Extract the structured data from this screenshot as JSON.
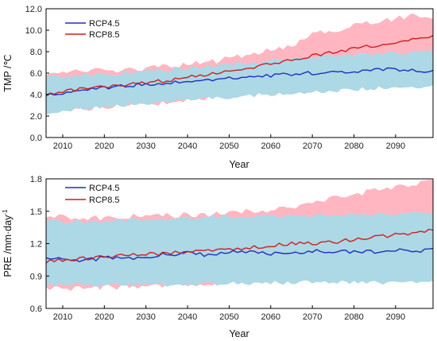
{
  "chart_data": [
    {
      "type": "line",
      "ylabel": "TMP /℃",
      "xlabel": "Year",
      "xlim": [
        2006,
        2099
      ],
      "ylim": [
        0,
        12
      ],
      "xticks": [
        2010,
        2020,
        2030,
        2040,
        2050,
        2060,
        2070,
        2080,
        2090
      ],
      "yticks": [
        "0.0",
        "2.0",
        "4.0",
        "6.0",
        "8.0",
        "10.0",
        "12.0"
      ],
      "legend_position": "top-left",
      "bands": [
        {
          "series": "RCP8.5",
          "color": "#ffb6c1",
          "x": [
            2006,
            2015,
            2025,
            2035,
            2045,
            2055,
            2065,
            2070,
            2075,
            2080,
            2085,
            2090,
            2095,
            2099
          ],
          "upper": [
            6.0,
            6.2,
            6.3,
            6.6,
            7.0,
            7.8,
            8.6,
            9.6,
            10.0,
            10.4,
            10.8,
            11.1,
            11.4,
            11.0
          ],
          "lower": [
            2.5,
            2.7,
            2.9,
            3.3,
            3.7,
            4.2,
            4.9,
            5.3,
            5.8,
            6.2,
            6.6,
            7.0,
            7.5,
            7.6
          ]
        },
        {
          "series": "RCP4.5",
          "color": "#add8e6",
          "x": [
            2006,
            2015,
            2025,
            2035,
            2045,
            2055,
            2065,
            2075,
            2085,
            2099
          ],
          "upper": [
            5.6,
            5.8,
            6.0,
            6.3,
            6.6,
            7.0,
            7.3,
            7.6,
            7.8,
            8.0
          ],
          "lower": [
            2.3,
            2.7,
            3.0,
            3.3,
            3.6,
            3.9,
            4.1,
            4.3,
            4.6,
            4.8
          ]
        }
      ],
      "series": [
        {
          "name": "RCP4.5",
          "color": "#1f2fbf",
          "x": [
            2006,
            2010,
            2015,
            2020,
            2025,
            2030,
            2035,
            2040,
            2045,
            2050,
            2055,
            2060,
            2065,
            2070,
            2075,
            2080,
            2085,
            2090,
            2095,
            2099
          ],
          "values": [
            4.0,
            4.2,
            4.4,
            4.6,
            4.8,
            5.0,
            5.1,
            5.2,
            5.4,
            5.6,
            5.7,
            5.8,
            5.9,
            6.0,
            6.1,
            6.2,
            6.3,
            6.3,
            6.2,
            6.3
          ]
        },
        {
          "name": "RCP8.5",
          "color": "#cc1f1f",
          "x": [
            2006,
            2010,
            2015,
            2020,
            2025,
            2030,
            2035,
            2040,
            2045,
            2050,
            2055,
            2060,
            2065,
            2070,
            2075,
            2080,
            2085,
            2090,
            2095,
            2099
          ],
          "values": [
            4.0,
            4.3,
            4.5,
            4.7,
            4.9,
            5.1,
            5.3,
            5.6,
            5.9,
            6.2,
            6.5,
            6.9,
            7.3,
            7.6,
            8.0,
            8.3,
            8.6,
            8.9,
            9.2,
            9.4
          ]
        }
      ]
    },
    {
      "type": "line",
      "ylabel": "PRE /mm·day",
      "ylabel_sup": "-1",
      "xlabel": "Year",
      "xlim": [
        2006,
        2099
      ],
      "ylim": [
        0.6,
        1.8
      ],
      "xticks": [
        2010,
        2020,
        2030,
        2040,
        2050,
        2060,
        2070,
        2080,
        2090
      ],
      "yticks": [
        "0.6",
        "0.9",
        "1.2",
        "1.5",
        "1.8"
      ],
      "legend_position": "top-left",
      "bands": [
        {
          "series": "RCP8.5",
          "color": "#ffb6c1",
          "x": [
            2006,
            2015,
            2025,
            2035,
            2045,
            2055,
            2065,
            2070,
            2075,
            2080,
            2085,
            2090,
            2095,
            2099
          ],
          "upper": [
            1.46,
            1.43,
            1.45,
            1.46,
            1.47,
            1.5,
            1.53,
            1.58,
            1.62,
            1.65,
            1.7,
            1.72,
            1.76,
            1.78
          ],
          "lower": [
            0.78,
            0.79,
            0.8,
            0.82,
            0.83,
            0.84,
            0.86,
            0.87,
            0.88,
            0.89,
            0.9,
            0.92,
            0.93,
            0.95
          ]
        },
        {
          "series": "RCP4.5",
          "color": "#add8e6",
          "x": [
            2006,
            2015,
            2025,
            2035,
            2045,
            2055,
            2065,
            2075,
            2085,
            2099
          ],
          "upper": [
            1.42,
            1.4,
            1.42,
            1.43,
            1.45,
            1.45,
            1.46,
            1.47,
            1.47,
            1.48
          ],
          "lower": [
            0.82,
            0.82,
            0.82,
            0.82,
            0.83,
            0.83,
            0.84,
            0.84,
            0.84,
            0.85
          ]
        }
      ],
      "series": [
        {
          "name": "RCP4.5",
          "color": "#1f2fbf",
          "x": [
            2006,
            2010,
            2015,
            2020,
            2025,
            2030,
            2035,
            2040,
            2045,
            2050,
            2055,
            2060,
            2065,
            2070,
            2075,
            2080,
            2085,
            2090,
            2095,
            2099
          ],
          "values": [
            1.08,
            1.05,
            1.04,
            1.07,
            1.06,
            1.08,
            1.1,
            1.11,
            1.09,
            1.12,
            1.13,
            1.11,
            1.12,
            1.13,
            1.12,
            1.13,
            1.12,
            1.14,
            1.13,
            1.15
          ]
        },
        {
          "name": "RCP8.5",
          "color": "#cc1f1f",
          "x": [
            2006,
            2010,
            2015,
            2020,
            2025,
            2030,
            2035,
            2040,
            2045,
            2050,
            2055,
            2060,
            2065,
            2070,
            2075,
            2080,
            2085,
            2090,
            2095,
            2099
          ],
          "values": [
            1.03,
            1.05,
            1.06,
            1.08,
            1.09,
            1.1,
            1.11,
            1.12,
            1.13,
            1.15,
            1.16,
            1.18,
            1.2,
            1.2,
            1.21,
            1.24,
            1.26,
            1.28,
            1.3,
            1.33
          ]
        }
      ]
    }
  ]
}
